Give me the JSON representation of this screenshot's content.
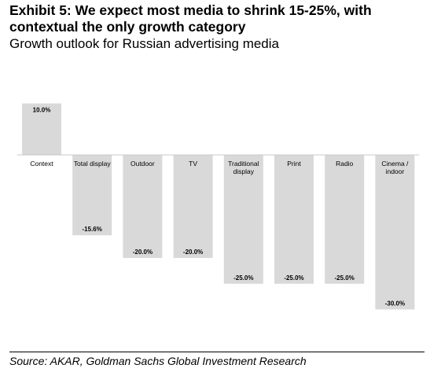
{
  "header": {
    "title_line1": "Exhibit 5: We expect most media to shrink 15-25%, with",
    "title_line2": "contextual the only growth category",
    "subtitle": "Growth outlook for Russian advertising media"
  },
  "chart_data": {
    "type": "bar",
    "categories": [
      "Context",
      "Total display",
      "Outdoor",
      "TV",
      "Traditional display",
      "Print",
      "Radio",
      "Cinema / indoor"
    ],
    "category_lines": [
      [
        "Context"
      ],
      [
        "Total display"
      ],
      [
        "Outdoor"
      ],
      [
        "TV"
      ],
      [
        "Traditional",
        "display"
      ],
      [
        "Print"
      ],
      [
        "Radio"
      ],
      [
        "Cinema /",
        "indoor"
      ]
    ],
    "values": [
      10.0,
      -15.6,
      -20.0,
      -20.0,
      -25.0,
      -25.0,
      -25.0,
      -30.0
    ],
    "data_labels": [
      "10.0%",
      "-15.6%",
      "-20.0%",
      "-20.0%",
      "-25.0%",
      "-25.0%",
      "-25.0%",
      "-30.0%"
    ],
    "ylim": [
      -30,
      10
    ],
    "bar_color": "#d9d9d9",
    "grid": false,
    "legend": "none"
  },
  "footer": {
    "source": "Source: AKAR, Goldman Sachs Global Investment Research"
  }
}
